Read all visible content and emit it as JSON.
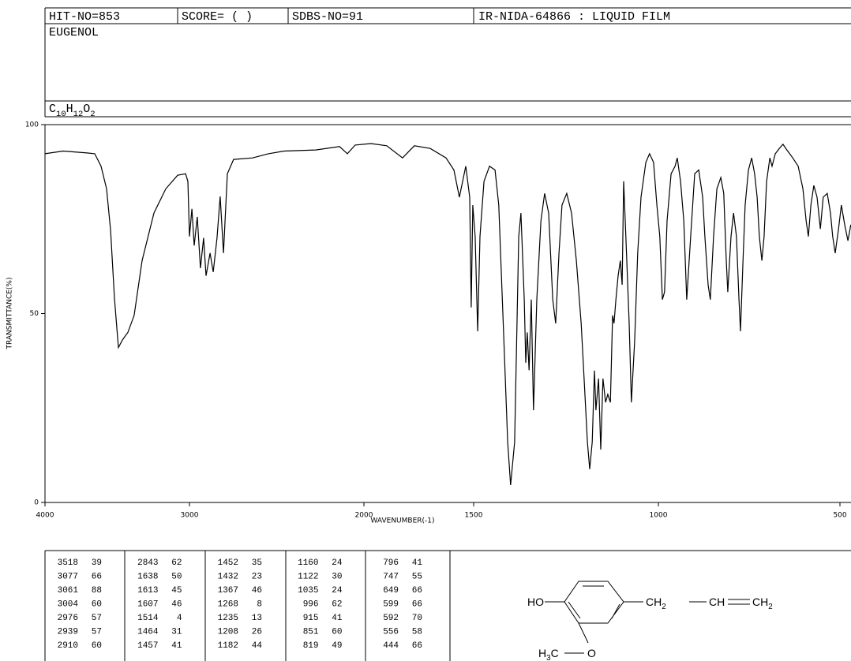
{
  "header": {
    "hit_no": "HIT-NO=853",
    "score": "SCORE=  (   )",
    "sdbs_no": "SDBS-NO=91",
    "method": "IR-NIDA-64866 : LIQUID FILM",
    "name": "EUGENOL",
    "formula": "C10H12O2"
  },
  "chart_data": {
    "type": "line",
    "xlabel": "WAVENUMBER(-1)",
    "ylabel": "TRANSMITTANCE(%)",
    "xlim": [
      4000,
      470
    ],
    "ylim": [
      0,
      100
    ],
    "xticks": [
      4000,
      3000,
      2000,
      1500,
      1000,
      500
    ],
    "yticks": [
      0,
      50,
      100
    ],
    "color": "#000000",
    "x": [
      4000,
      3874,
      3710,
      3656,
      3612,
      3574,
      3546,
      3519,
      3492,
      3464,
      3426,
      3383,
      3328,
      3246,
      3164,
      3082,
      3027,
      3011,
      3000,
      2986,
      2973,
      2955,
      2937,
      2919,
      2905,
      2882,
      2864,
      2842,
      2824,
      2805,
      2783,
      2747,
      2638,
      2548,
      2457,
      2276,
      2140,
      2095,
      2050,
      1968,
      1896,
      1824,
      1770,
      1698,
      1626,
      1590,
      1565,
      1536,
      1518,
      1511,
      1504,
      1496,
      1489,
      1483,
      1472,
      1457,
      1442,
      1432,
      1419,
      1408,
      1400,
      1389,
      1378,
      1372,
      1363,
      1359,
      1355,
      1350,
      1344,
      1338,
      1329,
      1318,
      1308,
      1297,
      1286,
      1278,
      1269,
      1261,
      1248,
      1235,
      1222,
      1209,
      1201,
      1192,
      1186,
      1179,
      1173,
      1169,
      1162,
      1156,
      1150,
      1143,
      1137,
      1130,
      1124,
      1120,
      1115,
      1109,
      1103,
      1098,
      1094,
      1088,
      1079,
      1073,
      1064,
      1056,
      1047,
      1034,
      1024,
      1013,
      1004,
      996,
      989,
      983,
      976,
      965,
      954,
      948,
      939,
      930,
      922,
      911,
      900,
      889,
      878,
      872,
      863,
      857,
      848,
      839,
      828,
      820,
      813,
      809,
      800,
      793,
      785,
      778,
      774,
      767,
      761,
      752,
      743,
      735,
      728,
      722,
      715,
      709,
      702,
      693,
      687,
      678,
      667,
      657,
      646,
      630,
      615,
      602,
      593,
      587,
      580,
      572,
      563,
      554,
      546,
      535,
      526,
      520,
      513,
      504,
      496,
      487,
      478,
      470
    ],
    "values": [
      92.3,
      93,
      92.5,
      92.3,
      89,
      83,
      72,
      54,
      41,
      43,
      45,
      49.5,
      64,
      76.6,
      83,
      86.6,
      87,
      85,
      70.4,
      77.7,
      68,
      75.6,
      62,
      70,
      60,
      66,
      61,
      70,
      81,
      66,
      87,
      90.8,
      91.2,
      92.3,
      93,
      93.3,
      94.2,
      92.3,
      94.6,
      95,
      94.4,
      91.2,
      94.4,
      93.7,
      91.2,
      88,
      80.8,
      89,
      80.8,
      51.6,
      78.7,
      70.4,
      45.3,
      70.4,
      85,
      89,
      88,
      78.7,
      45,
      16,
      4.6,
      16,
      70.4,
      76.6,
      53.7,
      37,
      45,
      35,
      53.7,
      24.4,
      53.7,
      74.5,
      81.8,
      76.6,
      53.7,
      47.4,
      66,
      78.7,
      81.8,
      76.6,
      64,
      47.4,
      32.8,
      16,
      8.8,
      16,
      34.9,
      24.4,
      32.8,
      14,
      32.8,
      26.5,
      28.6,
      26.5,
      49.5,
      47.4,
      53.7,
      60,
      64,
      57.6,
      85,
      70.4,
      47.4,
      26.5,
      43,
      66,
      80.8,
      90,
      92.3,
      90,
      78.7,
      70.4,
      53.7,
      55.7,
      74.5,
      87,
      89,
      91.2,
      85,
      74.5,
      53.7,
      70.4,
      87,
      88,
      80.8,
      70.4,
      57.6,
      53.7,
      70.4,
      83,
      86,
      81.8,
      64,
      55.7,
      70.4,
      76.6,
      70.4,
      53.7,
      45.3,
      64,
      78.7,
      88,
      91.2,
      87,
      80.8,
      70.4,
      64,
      70.4,
      85,
      91.2,
      89,
      92.3,
      93.7,
      94.8,
      93.3,
      91.2,
      89,
      83,
      74.5,
      70.4,
      78.7,
      83.9,
      80.8,
      72.4,
      80.8,
      81.8,
      76.6,
      70.4,
      66,
      72.4,
      78.7,
      73.5,
      69.3,
      73.5
    ]
  },
  "peak_table": {
    "columns": [
      [
        [
          3518,
          39
        ],
        [
          3077,
          66
        ],
        [
          3061,
          88
        ],
        [
          3004,
          60
        ],
        [
          2976,
          57
        ],
        [
          2939,
          57
        ],
        [
          2910,
          60
        ]
      ],
      [
        [
          2843,
          62
        ],
        [
          1638,
          50
        ],
        [
          1613,
          45
        ],
        [
          1607,
          46
        ],
        [
          1514,
          4
        ],
        [
          1464,
          31
        ],
        [
          1457,
          41
        ]
      ],
      [
        [
          1452,
          35
        ],
        [
          1432,
          23
        ],
        [
          1367,
          46
        ],
        [
          1268,
          8
        ],
        [
          1235,
          13
        ],
        [
          1208,
          26
        ],
        [
          1182,
          44
        ]
      ],
      [
        [
          1160,
          24
        ],
        [
          1122,
          30
        ],
        [
          1035,
          24
        ],
        [
          996,
          62
        ],
        [
          915,
          41
        ],
        [
          851,
          60
        ],
        [
          819,
          49
        ]
      ],
      [
        [
          796,
          41
        ],
        [
          747,
          55
        ],
        [
          649,
          66
        ],
        [
          599,
          66
        ],
        [
          592,
          70
        ],
        [
          556,
          58
        ],
        [
          444,
          66
        ]
      ]
    ]
  },
  "structure": {
    "labels": [
      "HO",
      "CH2",
      "CH",
      "CH2",
      "H3C",
      "O"
    ]
  }
}
